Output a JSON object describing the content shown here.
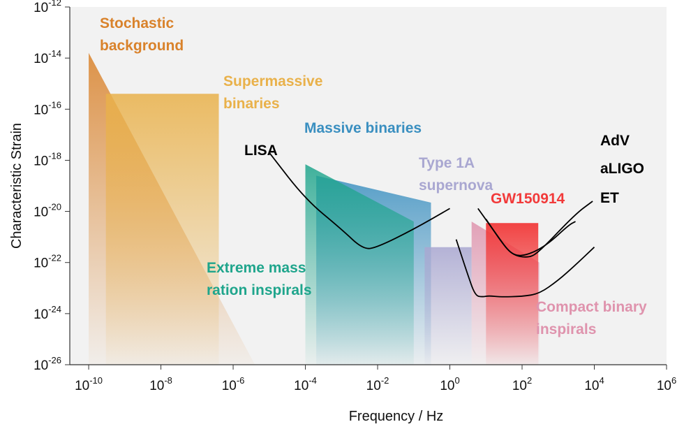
{
  "chart_data": {
    "type": "area",
    "title": "",
    "xlabel": "Frequency / Hz",
    "ylabel": "Characteristic Strain",
    "xscale": "log",
    "yscale": "log",
    "xlim": [
      3e-11,
      1000000.0
    ],
    "ylim": [
      1e-26,
      1e-12
    ],
    "grid": false,
    "x_ticks": [
      {
        "base": "10",
        "exp": "-10",
        "value": 1e-10
      },
      {
        "base": "10",
        "exp": "-8",
        "value": 1e-08
      },
      {
        "base": "10",
        "exp": "-6",
        "value": 1e-06
      },
      {
        "base": "10",
        "exp": "-4",
        "value": 0.0001
      },
      {
        "base": "10",
        "exp": "-2",
        "value": 0.01
      },
      {
        "base": "10",
        "exp": "0",
        "value": 1
      },
      {
        "base": "10",
        "exp": "2",
        "value": 100
      },
      {
        "base": "10",
        "exp": "4",
        "value": 10000
      },
      {
        "base": "10",
        "exp": "6",
        "value": 1000000
      }
    ],
    "y_ticks": [
      {
        "base": "10",
        "exp": "-12",
        "value": 1e-12
      },
      {
        "base": "10",
        "exp": "-14",
        "value": 1e-14
      },
      {
        "base": "10",
        "exp": "-16",
        "value": 1e-16
      },
      {
        "base": "10",
        "exp": "-18",
        "value": 1e-18
      },
      {
        "base": "10",
        "exp": "-20",
        "value": 1e-20
      },
      {
        "base": "10",
        "exp": "-22",
        "value": 1e-22
      },
      {
        "base": "10",
        "exp": "-24",
        "value": 1e-24
      },
      {
        "base": "10",
        "exp": "-26",
        "value": 1e-26
      }
    ],
    "regions": [
      {
        "label": [
          "Stochastic",
          "background"
        ],
        "color": "#d9822b",
        "polygon": [
          [
            1e-10,
            1.6e-14
          ],
          [
            4e-06,
            1e-26
          ],
          [
            1e-10,
            1e-26
          ]
        ]
      },
      {
        "label": [
          "Supermassive",
          "binaries"
        ],
        "color": "#e9b14a",
        "polygon": [
          [
            3e-10,
            4e-16
          ],
          [
            4e-07,
            4e-16
          ],
          [
            4e-07,
            1e-26
          ],
          [
            3e-10,
            1e-26
          ]
        ]
      },
      {
        "label": [
          "Massive binaries"
        ],
        "color": "#3a8fc0",
        "polygon": [
          [
            0.0002,
            2.5e-19
          ],
          [
            0.3,
            2.2e-20
          ],
          [
            0.3,
            1e-26
          ],
          [
            0.0002,
            1e-26
          ]
        ]
      },
      {
        "label": [
          "Extreme mass",
          "ration inspirals"
        ],
        "color": "#1fa58c",
        "polygon": [
          [
            0.0001,
            7e-19
          ],
          [
            0.1,
            4e-21
          ],
          [
            0.1,
            1e-26
          ],
          [
            0.0001,
            1e-26
          ]
        ]
      },
      {
        "label": [
          "Type 1A",
          "supernova"
        ],
        "color": "#a9a7d1",
        "polygon": [
          [
            0.2,
            4e-22
          ],
          [
            4,
            4e-22
          ],
          [
            4,
            1e-26
          ],
          [
            0.2,
            1e-26
          ]
        ]
      },
      {
        "label": [
          "Compact binary",
          "inspirals"
        ],
        "color": "#df93ad",
        "polygon": [
          [
            4,
            4e-21
          ],
          [
            300,
            1e-22
          ],
          [
            300,
            1e-26
          ],
          [
            4,
            1e-26
          ]
        ]
      },
      {
        "label": [
          "GW150914"
        ],
        "color": "#f23a3a",
        "polygon": [
          [
            10,
            3.5e-21
          ],
          [
            280,
            3.5e-21
          ],
          [
            280,
            1e-26
          ],
          [
            10,
            1e-26
          ]
        ]
      }
    ],
    "curves": [
      {
        "label": "LISA",
        "color": "#000000",
        "points": [
          [
            1e-05,
            2e-18
          ],
          [
            0.0001,
            3e-20
          ],
          [
            0.001,
            2e-21
          ],
          [
            0.004,
            3.2e-22
          ],
          [
            0.01,
            4e-22
          ],
          [
            0.1,
            2e-21
          ],
          [
            1,
            1.3e-20
          ]
        ]
      },
      {
        "label": "AdV",
        "color": "#000000",
        "points": [
          [
            6,
            1.3e-20
          ],
          [
            20,
            1.2e-21
          ],
          [
            50,
            2e-22
          ],
          [
            150,
            1.5e-22
          ],
          [
            300,
            2.6e-22
          ],
          [
            3000,
            8e-21
          ],
          [
            9000,
            2.5e-20
          ]
        ]
      },
      {
        "label": "aLIGO",
        "color": "#000000",
        "points": [
          [
            10,
            5e-21
          ],
          [
            30,
            5e-22
          ],
          [
            60,
            1.8e-22
          ],
          [
            150,
            2e-22
          ],
          [
            500,
            5e-22
          ],
          [
            2000,
            3e-21
          ],
          [
            3000,
            4e-21
          ]
        ]
      },
      {
        "label": "ET",
        "color": "#000000",
        "points": [
          [
            1.5,
            8e-22
          ],
          [
            3,
            4e-23
          ],
          [
            5,
            5e-24
          ],
          [
            8,
            4.5e-24
          ],
          [
            12,
            5e-24
          ],
          [
            25,
            4.5e-24
          ],
          [
            100,
            4.7e-24
          ],
          [
            300,
            6e-24
          ],
          [
            1000,
            2e-23
          ],
          [
            3000,
            8e-23
          ],
          [
            10000,
            4e-22
          ]
        ]
      }
    ]
  }
}
